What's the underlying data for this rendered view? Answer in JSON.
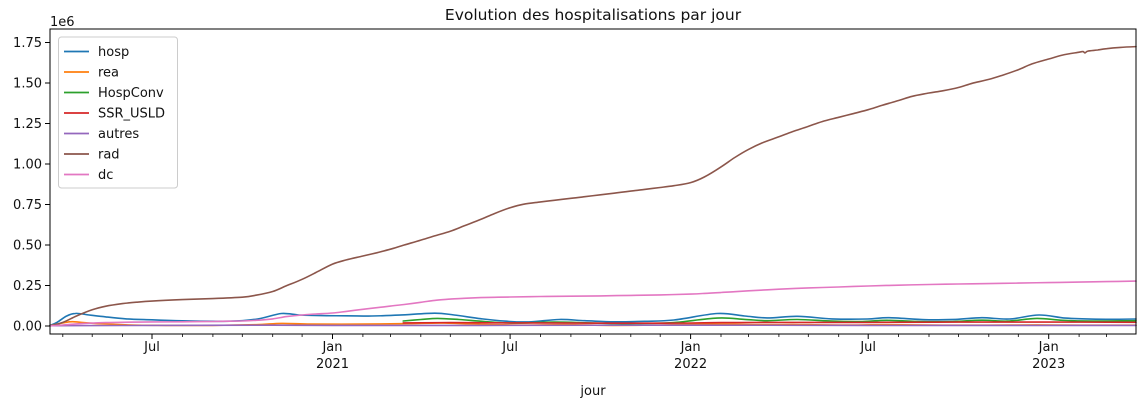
{
  "chart_data": {
    "type": "line",
    "title": "Evolution des hospitalisations par jour",
    "xlabel": "jour",
    "ylabel": "",
    "y_scale_offset_label": "1e6",
    "x_start_date": "2020-03-19",
    "x_end_date": "2023-03-31",
    "ylim_e6": [
      -0.05,
      1.83
    ],
    "grid": false,
    "legend_position": "upper left",
    "y_ticks": [
      {
        "label": "0.00",
        "value": 0.0
      },
      {
        "label": "0.25",
        "value": 0.25
      },
      {
        "label": "0.50",
        "value": 0.5
      },
      {
        "label": "0.75",
        "value": 0.75
      },
      {
        "label": "1.00",
        "value": 1.0
      },
      {
        "label": "1.25",
        "value": 1.25
      },
      {
        "label": "1.50",
        "value": 1.5
      },
      {
        "label": "1.75",
        "value": 1.75
      }
    ],
    "x_ticks_major": [
      {
        "date": "2020-07-01",
        "label": "Jul",
        "year": ""
      },
      {
        "date": "2021-01-01",
        "label": "Jan",
        "year": "2021"
      },
      {
        "date": "2021-07-01",
        "label": "Jul",
        "year": ""
      },
      {
        "date": "2022-01-01",
        "label": "Jan",
        "year": "2022"
      },
      {
        "date": "2022-07-01",
        "label": "Jul",
        "year": ""
      },
      {
        "date": "2023-01-01",
        "label": "Jan",
        "year": "2023"
      }
    ],
    "x_minor_tick_interval": "month",
    "series": [
      {
        "name": "hosp",
        "color": "#1f77b4",
        "points_e6": [
          [
            "2020-03-19",
            0.004
          ],
          [
            "2020-03-26",
            0.022
          ],
          [
            "2020-04-05",
            0.062
          ],
          [
            "2020-04-14",
            0.078
          ],
          [
            "2020-04-28",
            0.068
          ],
          [
            "2020-05-15",
            0.056
          ],
          [
            "2020-06-05",
            0.044
          ],
          [
            "2020-07-01",
            0.038
          ],
          [
            "2020-08-01",
            0.032
          ],
          [
            "2020-09-05",
            0.029
          ],
          [
            "2020-10-01",
            0.033
          ],
          [
            "2020-10-20",
            0.047
          ],
          [
            "2020-11-10",
            0.077
          ],
          [
            "2020-11-28",
            0.068
          ],
          [
            "2020-12-20",
            0.064
          ],
          [
            "2021-01-15",
            0.063
          ],
          [
            "2021-02-10",
            0.062
          ],
          [
            "2021-03-10",
            0.067
          ],
          [
            "2021-04-15",
            0.079
          ],
          [
            "2021-05-05",
            0.068
          ],
          [
            "2021-06-01",
            0.045
          ],
          [
            "2021-06-25",
            0.03
          ],
          [
            "2021-07-20",
            0.025
          ],
          [
            "2021-08-20",
            0.04
          ],
          [
            "2021-09-15",
            0.033
          ],
          [
            "2021-10-15",
            0.026
          ],
          [
            "2021-11-15",
            0.029
          ],
          [
            "2021-12-15",
            0.037
          ],
          [
            "2022-01-28",
            0.077
          ],
          [
            "2022-02-25",
            0.062
          ],
          [
            "2022-03-20",
            0.05
          ],
          [
            "2022-04-20",
            0.06
          ],
          [
            "2022-05-25",
            0.044
          ],
          [
            "2022-06-30",
            0.043
          ],
          [
            "2022-07-22",
            0.051
          ],
          [
            "2022-08-28",
            0.039
          ],
          [
            "2022-09-28",
            0.041
          ],
          [
            "2022-10-25",
            0.051
          ],
          [
            "2022-11-22",
            0.043
          ],
          [
            "2022-12-22",
            0.068
          ],
          [
            "2023-01-18",
            0.049
          ],
          [
            "2023-02-18",
            0.042
          ],
          [
            "2023-03-31",
            0.043
          ]
        ]
      },
      {
        "name": "rea",
        "color": "#ff7f0e",
        "points_e6": [
          [
            "2020-03-19",
            0.002
          ],
          [
            "2020-04-08",
            0.026
          ],
          [
            "2020-04-20",
            0.022
          ],
          [
            "2020-05-10",
            0.014
          ],
          [
            "2020-06-10",
            0.006
          ],
          [
            "2020-07-15",
            0.004
          ],
          [
            "2020-09-01",
            0.004
          ],
          [
            "2020-10-15",
            0.008
          ],
          [
            "2020-11-10",
            0.016
          ],
          [
            "2020-12-10",
            0.012
          ],
          [
            "2021-02-01",
            0.012
          ],
          [
            "2021-03-20",
            0.015
          ],
          [
            "2021-04-25",
            0.018
          ],
          [
            "2021-06-05",
            0.01
          ],
          [
            "2021-07-15",
            0.005
          ],
          [
            "2021-08-25",
            0.008
          ],
          [
            "2021-10-15",
            0.004
          ],
          [
            "2021-12-01",
            0.006
          ],
          [
            "2022-01-25",
            0.012
          ],
          [
            "2022-03-10",
            0.008
          ],
          [
            "2022-04-15",
            0.009
          ],
          [
            "2022-06-01",
            0.006
          ],
          [
            "2022-07-20",
            0.008
          ],
          [
            "2022-09-15",
            0.005
          ],
          [
            "2022-11-01",
            0.005
          ],
          [
            "2022-12-20",
            0.007
          ],
          [
            "2023-02-01",
            0.005
          ],
          [
            "2023-03-31",
            0.005
          ]
        ]
      },
      {
        "name": "HospConv",
        "color": "#2ca02c",
        "points_e6": [
          [
            "2021-03-14",
            0.031
          ],
          [
            "2021-04-01",
            0.04
          ],
          [
            "2021-04-18",
            0.047
          ],
          [
            "2021-05-10",
            0.04
          ],
          [
            "2021-06-05",
            0.028
          ],
          [
            "2021-07-05",
            0.018
          ],
          [
            "2021-08-15",
            0.024
          ],
          [
            "2021-09-15",
            0.02
          ],
          [
            "2021-10-15",
            0.015
          ],
          [
            "2021-11-15",
            0.016
          ],
          [
            "2021-12-15",
            0.021
          ],
          [
            "2022-01-28",
            0.049
          ],
          [
            "2022-02-25",
            0.041
          ],
          [
            "2022-03-20",
            0.033
          ],
          [
            "2022-04-20",
            0.04
          ],
          [
            "2022-05-25",
            0.03
          ],
          [
            "2022-06-25",
            0.028
          ],
          [
            "2022-07-20",
            0.035
          ],
          [
            "2022-08-25",
            0.027
          ],
          [
            "2022-09-25",
            0.028
          ],
          [
            "2022-10-25",
            0.036
          ],
          [
            "2022-11-20",
            0.03
          ],
          [
            "2022-12-20",
            0.047
          ],
          [
            "2023-01-15",
            0.035
          ],
          [
            "2023-02-15",
            0.03
          ],
          [
            "2023-03-31",
            0.033
          ]
        ]
      },
      {
        "name": "SSR_USLD",
        "color": "#d62728",
        "points_e6": [
          [
            "2021-03-14",
            0.019
          ],
          [
            "2021-05-01",
            0.021
          ],
          [
            "2021-07-01",
            0.019
          ],
          [
            "2021-09-01",
            0.018
          ],
          [
            "2021-12-01",
            0.017
          ],
          [
            "2022-02-01",
            0.021
          ],
          [
            "2022-04-01",
            0.022
          ],
          [
            "2022-07-01",
            0.022
          ],
          [
            "2022-10-01",
            0.024
          ],
          [
            "2023-01-01",
            0.024
          ],
          [
            "2023-03-31",
            0.023
          ]
        ]
      },
      {
        "name": "autres",
        "color": "#9467bd",
        "points_e6": [
          [
            "2020-03-19",
            0.002
          ],
          [
            "2020-06-01",
            0.003
          ],
          [
            "2020-11-01",
            0.005
          ],
          [
            "2021-01-01",
            0.004
          ],
          [
            "2021-06-01",
            0.004
          ],
          [
            "2022-01-01",
            0.005
          ],
          [
            "2022-07-01",
            0.004
          ],
          [
            "2023-03-31",
            0.004
          ]
        ]
      },
      {
        "name": "rad",
        "color": "#8c564b",
        "points_e6": [
          [
            "2020-03-19",
            0.0
          ],
          [
            "2020-04-01",
            0.022
          ],
          [
            "2020-04-15",
            0.062
          ],
          [
            "2020-05-01",
            0.1
          ],
          [
            "2020-05-15",
            0.122
          ],
          [
            "2020-06-01",
            0.138
          ],
          [
            "2020-06-15",
            0.147
          ],
          [
            "2020-07-01",
            0.154
          ],
          [
            "2020-08-01",
            0.163
          ],
          [
            "2020-09-01",
            0.169
          ],
          [
            "2020-10-01",
            0.178
          ],
          [
            "2020-10-15",
            0.19
          ],
          [
            "2020-11-01",
            0.213
          ],
          [
            "2020-11-15",
            0.248
          ],
          [
            "2020-12-01",
            0.288
          ],
          [
            "2020-12-15",
            0.33
          ],
          [
            "2021-01-01",
            0.382
          ],
          [
            "2021-01-15",
            0.408
          ],
          [
            "2021-02-01",
            0.432
          ],
          [
            "2021-02-15",
            0.452
          ],
          [
            "2021-03-01",
            0.474
          ],
          [
            "2021-03-15",
            0.5
          ],
          [
            "2021-04-01",
            0.53
          ],
          [
            "2021-04-15",
            0.556
          ],
          [
            "2021-05-01",
            0.585
          ],
          [
            "2021-05-15",
            0.618
          ],
          [
            "2021-06-01",
            0.658
          ],
          [
            "2021-06-15",
            0.694
          ],
          [
            "2021-07-01",
            0.73
          ],
          [
            "2021-07-15",
            0.752
          ],
          [
            "2021-08-01",
            0.766
          ],
          [
            "2021-08-15",
            0.776
          ],
          [
            "2021-09-01",
            0.788
          ],
          [
            "2021-09-15",
            0.798
          ],
          [
            "2021-10-01",
            0.81
          ],
          [
            "2021-10-15",
            0.82
          ],
          [
            "2021-11-01",
            0.833
          ],
          [
            "2021-11-15",
            0.843
          ],
          [
            "2021-12-01",
            0.855
          ],
          [
            "2021-12-15",
            0.866
          ],
          [
            "2022-01-01",
            0.885
          ],
          [
            "2022-01-15",
            0.92
          ],
          [
            "2022-02-01",
            0.982
          ],
          [
            "2022-02-15",
            1.04
          ],
          [
            "2022-03-01",
            1.09
          ],
          [
            "2022-03-15",
            1.13
          ],
          [
            "2022-04-01",
            1.168
          ],
          [
            "2022-04-15",
            1.2
          ],
          [
            "2022-05-01",
            1.232
          ],
          [
            "2022-05-15",
            1.262
          ],
          [
            "2022-06-01",
            1.288
          ],
          [
            "2022-06-15",
            1.31
          ],
          [
            "2022-07-01",
            1.335
          ],
          [
            "2022-07-15",
            1.362
          ],
          [
            "2022-08-01",
            1.392
          ],
          [
            "2022-08-15",
            1.418
          ],
          [
            "2022-09-01",
            1.438
          ],
          [
            "2022-09-15",
            1.452
          ],
          [
            "2022-10-01",
            1.472
          ],
          [
            "2022-10-15",
            1.498
          ],
          [
            "2022-11-01",
            1.522
          ],
          [
            "2022-11-15",
            1.548
          ],
          [
            "2022-12-01",
            1.582
          ],
          [
            "2022-12-15",
            1.618
          ],
          [
            "2023-01-01",
            1.648
          ],
          [
            "2023-01-15",
            1.672
          ],
          [
            "2023-02-01",
            1.69
          ],
          [
            "2023-02-05",
            1.694
          ],
          [
            "2023-02-07",
            1.686
          ],
          [
            "2023-02-10",
            1.697
          ],
          [
            "2023-02-20",
            1.704
          ],
          [
            "2023-03-01",
            1.712
          ],
          [
            "2023-03-15",
            1.72
          ],
          [
            "2023-03-31",
            1.725
          ]
        ]
      },
      {
        "name": "dc",
        "color": "#e377c2",
        "points_e6": [
          [
            "2020-03-19",
            0.001
          ],
          [
            "2020-04-01",
            0.006
          ],
          [
            "2020-04-15",
            0.013
          ],
          [
            "2020-05-01",
            0.018
          ],
          [
            "2020-05-15",
            0.021
          ],
          [
            "2020-06-01",
            0.023
          ],
          [
            "2020-07-01",
            0.025
          ],
          [
            "2020-08-01",
            0.026
          ],
          [
            "2020-09-01",
            0.028
          ],
          [
            "2020-10-01",
            0.031
          ],
          [
            "2020-10-15",
            0.035
          ],
          [
            "2020-11-01",
            0.044
          ],
          [
            "2020-11-15",
            0.058
          ],
          [
            "2020-12-01",
            0.068
          ],
          [
            "2020-12-15",
            0.074
          ],
          [
            "2021-01-01",
            0.08
          ],
          [
            "2021-01-15",
            0.09
          ],
          [
            "2021-02-01",
            0.103
          ],
          [
            "2021-02-15",
            0.113
          ],
          [
            "2021-03-01",
            0.123
          ],
          [
            "2021-03-15",
            0.133
          ],
          [
            "2021-04-01",
            0.146
          ],
          [
            "2021-04-15",
            0.158
          ],
          [
            "2021-05-01",
            0.166
          ],
          [
            "2021-05-15",
            0.171
          ],
          [
            "2021-06-01",
            0.175
          ],
          [
            "2021-06-15",
            0.177
          ],
          [
            "2021-07-01",
            0.179
          ],
          [
            "2021-08-01",
            0.182
          ],
          [
            "2021-09-01",
            0.184
          ],
          [
            "2021-10-01",
            0.186
          ],
          [
            "2021-11-01",
            0.189
          ],
          [
            "2021-12-01",
            0.192
          ],
          [
            "2022-01-01",
            0.197
          ],
          [
            "2022-01-15",
            0.201
          ],
          [
            "2022-02-01",
            0.207
          ],
          [
            "2022-02-15",
            0.212
          ],
          [
            "2022-03-01",
            0.217
          ],
          [
            "2022-04-01",
            0.227
          ],
          [
            "2022-05-01",
            0.235
          ],
          [
            "2022-06-01",
            0.241
          ],
          [
            "2022-07-01",
            0.247
          ],
          [
            "2022-08-01",
            0.252
          ],
          [
            "2022-09-01",
            0.256
          ],
          [
            "2022-10-01",
            0.259
          ],
          [
            "2022-11-01",
            0.262
          ],
          [
            "2022-12-01",
            0.265
          ],
          [
            "2023-01-01",
            0.268
          ],
          [
            "2023-02-01",
            0.271
          ],
          [
            "2023-03-01",
            0.274
          ],
          [
            "2023-03-31",
            0.277
          ]
        ]
      }
    ]
  }
}
